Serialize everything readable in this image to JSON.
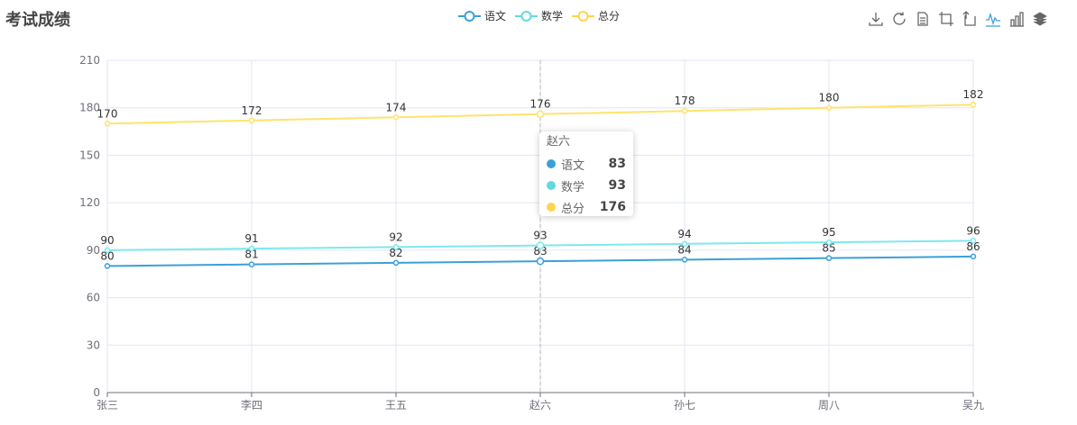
{
  "title": "考试成绩",
  "legend": [
    {
      "name": "语文",
      "color": "#3ba0d8"
    },
    {
      "name": "数学",
      "color": "#62d9e0"
    },
    {
      "name": "总分",
      "color": "#ffd54f"
    }
  ],
  "toolbox": [
    "save-icon",
    "restore-icon",
    "data-view-icon",
    "zoom-icon",
    "zoom-reset-icon",
    "line-chart-icon",
    "bar-chart-icon",
    "stack-icon"
  ],
  "tooltip": {
    "title": "赵六",
    "rows": [
      {
        "name": "语文",
        "value": "83",
        "color": "#3ba0d8"
      },
      {
        "name": "数学",
        "value": "93",
        "color": "#62d9e0"
      },
      {
        "name": "总分",
        "value": "176",
        "color": "#ffd54f"
      }
    ]
  },
  "chart_data": {
    "type": "line",
    "categories": [
      "张三",
      "李四",
      "王五",
      "赵六",
      "孙七",
      "周八",
      "吴九"
    ],
    "ylim": [
      0,
      210
    ],
    "yticks": [
      "0",
      "30",
      "60",
      "90",
      "120",
      "150",
      "180",
      "210"
    ],
    "highlight_category": "赵六",
    "series": [
      {
        "name": "语文",
        "color": "#3ba0d8",
        "values": [
          80,
          81,
          82,
          83,
          84,
          85,
          86
        ]
      },
      {
        "name": "数学",
        "color": "#7de8ee",
        "values": [
          90,
          91,
          92,
          93,
          94,
          95,
          96
        ]
      },
      {
        "name": "总分",
        "color": "#ffe36b",
        "values": [
          170,
          172,
          174,
          176,
          178,
          180,
          182
        ]
      }
    ]
  }
}
